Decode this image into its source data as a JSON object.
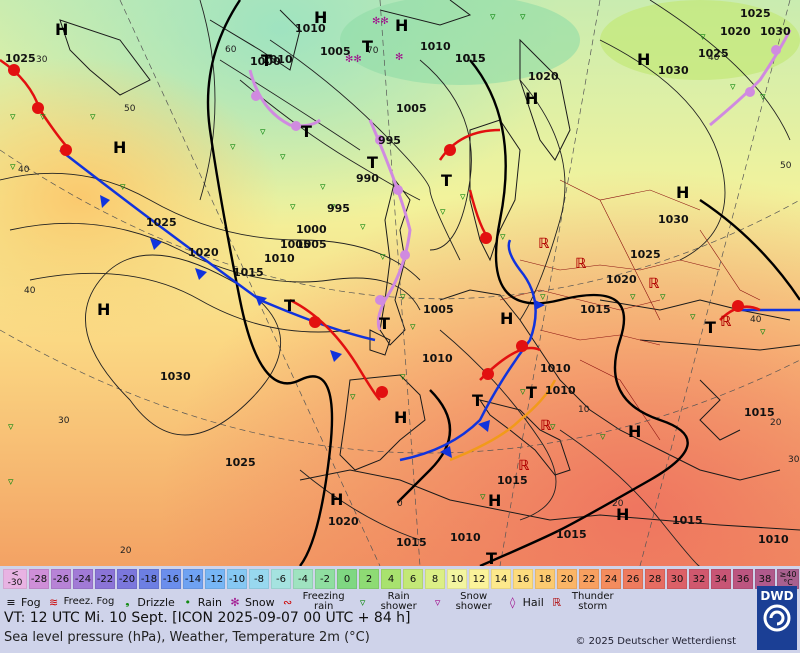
{
  "title_line": "VT: 12 UTC Mi.   10 Sept. [ICON 2025-09-07  00 UTC + 84 h]",
  "subtitle": "Sea level pressure (hPa), Weather, Temperature 2m (°C)",
  "copyright": "© 2025 Deutscher Wetterdienst",
  "logo": "DWD",
  "scale": {
    "first": [
      "<",
      "-30"
    ],
    "last": [
      "≥40",
      "°C"
    ],
    "steps": [
      "-30",
      "-28",
      "-26",
      "-24",
      "-22",
      "-20",
      "-18",
      "-16",
      "-14",
      "-12",
      "-10",
      "-8",
      "-6",
      "-4",
      "-2",
      "0",
      "2",
      "4",
      "6",
      "8",
      "10",
      "12",
      "14",
      "16",
      "18",
      "20",
      "22",
      "24",
      "26",
      "28",
      "30",
      "32",
      "34",
      "36",
      "38"
    ],
    "colors": [
      "#e2a5dc",
      "#cf8fd8",
      "#b783d6",
      "#a17ad6",
      "#8b74d7",
      "#7b77dc",
      "#6d7fe3",
      "#6b8eec",
      "#6fa2f2",
      "#77b6f5",
      "#86c8f3",
      "#98d8ef",
      "#a5e3e0",
      "#9fe3c0",
      "#8fdea0",
      "#7fd782",
      "#8edb74",
      "#a8e26e",
      "#c3e877",
      "#dcef86",
      "#f3f5a0",
      "#fbf39a",
      "#fde98c",
      "#fddc7e",
      "#fcca70",
      "#fbb566",
      "#f8a060",
      "#f48c5e",
      "#ee7b5e",
      "#e66c62",
      "#dc6067",
      "#d0586e",
      "#c85575",
      "#bc5580",
      "#b05a8c"
    ]
  },
  "weather_legend": [
    {
      "id": "fog",
      "label": "Fog",
      "icon": "fog-icon",
      "color": "#000000"
    },
    {
      "id": "freezing-fog",
      "label": "Freez. Fog",
      "icon": "freezing-fog-icon",
      "color": "#cc0000"
    },
    {
      "id": "drizzle",
      "label": "Drizzle",
      "icon": "drizzle-icon",
      "color": "#138a13"
    },
    {
      "id": "rain",
      "label": "Rain",
      "icon": "rain-icon",
      "color": "#138a13"
    },
    {
      "id": "snow",
      "label": "Snow",
      "icon": "snow-icon",
      "color": "#a0108c"
    },
    {
      "id": "freezing-rain",
      "label": "Freezing rain",
      "icon": "freezing-rain-icon",
      "color": "#cc0000"
    },
    {
      "id": "rain-shower",
      "label": "Rain shower",
      "icon": "rain-shower-icon",
      "color": "#138a13"
    },
    {
      "id": "snow-shower",
      "label": "Snow shower",
      "icon": "snow-shower-icon",
      "color": "#a0108c"
    },
    {
      "id": "hail",
      "label": "Hail",
      "icon": "hail-icon",
      "color": "#a0108c"
    },
    {
      "id": "thunderstorm",
      "label": "Thunder storm",
      "icon": "thunderstorm-icon",
      "color": "#b00000"
    }
  ],
  "map": {
    "pressure_labels": [
      "1025",
      "1010",
      "1005",
      "1000",
      "995",
      "990",
      "1025",
      "1020",
      "1015",
      "1010",
      "1005",
      "1000",
      "995",
      "1005",
      "1010",
      "1030",
      "1025",
      "1020",
      "1025",
      "1030",
      "1020",
      "1025",
      "1015",
      "1005",
      "1010",
      "1015",
      "1030",
      "1020",
      "1015",
      "1015",
      "1010",
      "1010",
      "1020",
      "1015",
      "1010",
      "1010",
      "1015",
      "1015",
      "1010",
      "1025",
      "1030",
      "1005",
      "1015"
    ],
    "temp_labels": [
      "30",
      "60",
      "50",
      "40",
      "40",
      "30",
      "20",
      "70",
      "50",
      "40",
      "20",
      "30",
      "40",
      "10",
      "20",
      "0"
    ],
    "highs": [
      "H",
      "H",
      "H",
      "H",
      "H",
      "H",
      "H",
      "H",
      "H",
      "H",
      "H",
      "H",
      "H",
      "H"
    ],
    "lows": [
      "T",
      "T",
      "T",
      "T",
      "T",
      "T",
      "T",
      "T",
      "T",
      "T",
      "T"
    ]
  }
}
